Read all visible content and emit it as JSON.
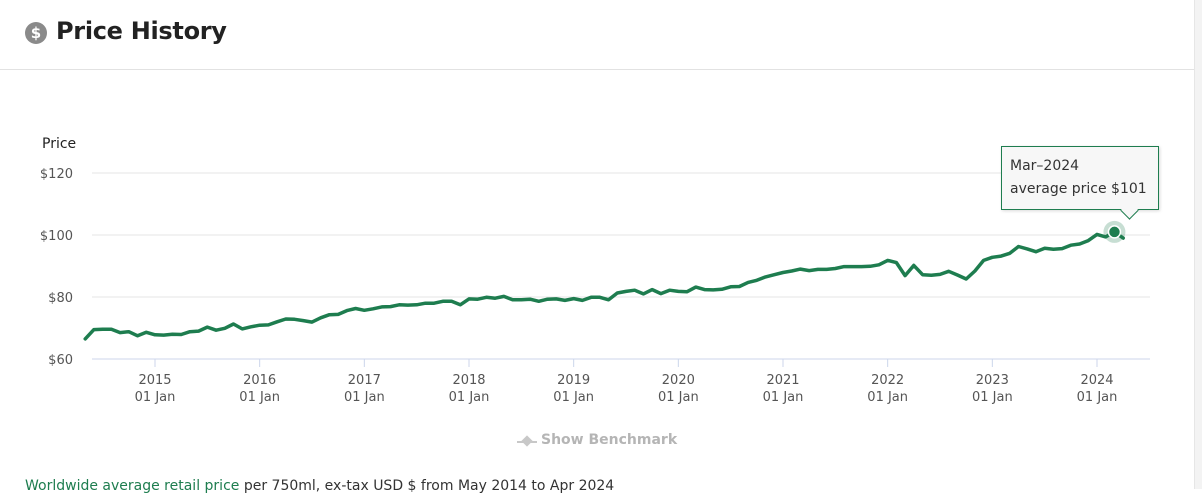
{
  "header": {
    "icon": "dollar-circle-icon",
    "icon_glyph": "$",
    "title": "Price History"
  },
  "chart_data": {
    "type": "line",
    "ylabel": "Price",
    "ylim": [
      60,
      125
    ],
    "yticks": [
      {
        "value": 60,
        "label": "$60"
      },
      {
        "value": 80,
        "label": "$80"
      },
      {
        "value": 100,
        "label": "$100"
      },
      {
        "value": 120,
        "label": "$120"
      }
    ],
    "xticks": [
      {
        "year": "2015",
        "day": "01 Jan"
      },
      {
        "year": "2016",
        "day": "01 Jan"
      },
      {
        "year": "2017",
        "day": "01 Jan"
      },
      {
        "year": "2018",
        "day": "01 Jan"
      },
      {
        "year": "2019",
        "day": "01 Jan"
      },
      {
        "year": "2020",
        "day": "01 Jan"
      },
      {
        "year": "2021",
        "day": "01 Jan"
      },
      {
        "year": "2022",
        "day": "01 Jan"
      },
      {
        "year": "2023",
        "day": "01 Jan"
      },
      {
        "year": "2024",
        "day": "01 Jan"
      }
    ],
    "series": [
      {
        "color": "#1e7d4f",
        "start": "2014-05",
        "values": [
          66.5,
          69.5,
          69.6,
          69.6,
          68.5,
          68.8,
          67.5,
          68.6,
          67.8,
          67.7,
          68.0,
          67.9,
          68.8,
          69.0,
          70.3,
          69.3,
          69.9,
          71.3,
          69.7,
          70.4,
          70.9,
          71.0,
          72.0,
          72.9,
          72.8,
          72.4,
          71.9,
          73.3,
          74.3,
          74.4,
          75.6,
          76.3,
          75.7,
          76.2,
          76.8,
          76.9,
          77.5,
          77.4,
          77.5,
          78.0,
          78.0,
          78.6,
          78.6,
          77.5,
          79.4,
          79.3,
          79.9,
          79.6,
          80.2,
          79.1,
          79.1,
          79.3,
          78.6,
          79.3,
          79.4,
          78.9,
          79.5,
          78.9,
          79.9,
          79.9,
          79.1,
          81.3,
          81.8,
          82.2,
          81.0,
          82.4,
          81.1,
          82.2,
          81.8,
          81.7,
          83.2,
          82.4,
          82.3,
          82.5,
          83.3,
          83.4,
          84.7,
          85.4,
          86.5,
          87.2,
          87.9,
          88.4,
          89.0,
          88.5,
          88.9,
          88.9,
          89.2,
          89.8,
          89.8,
          89.8,
          89.9,
          90.4,
          91.8,
          91.1,
          86.9,
          90.2,
          87.2,
          87.0,
          87.3,
          88.3,
          87.1,
          85.8,
          88.4,
          91.8,
          92.8,
          93.2,
          94.1,
          96.3,
          95.5,
          94.6,
          95.7,
          95.4,
          95.6,
          96.7,
          97.1,
          98.2,
          100.2,
          99.4,
          101.0,
          99.0
        ]
      }
    ],
    "highlight": {
      "month": "Mar-2024",
      "value": 101
    }
  },
  "tooltip": {
    "line1": "Mar–2024",
    "line2": "average price $101"
  },
  "benchmark": {
    "icon": "benchmark-line-icon",
    "label": "Show Benchmark"
  },
  "footer": {
    "link": "Worldwide average retail price",
    "text": " per 750ml, ex-tax USD $ from May 2014 to Apr 2024"
  }
}
